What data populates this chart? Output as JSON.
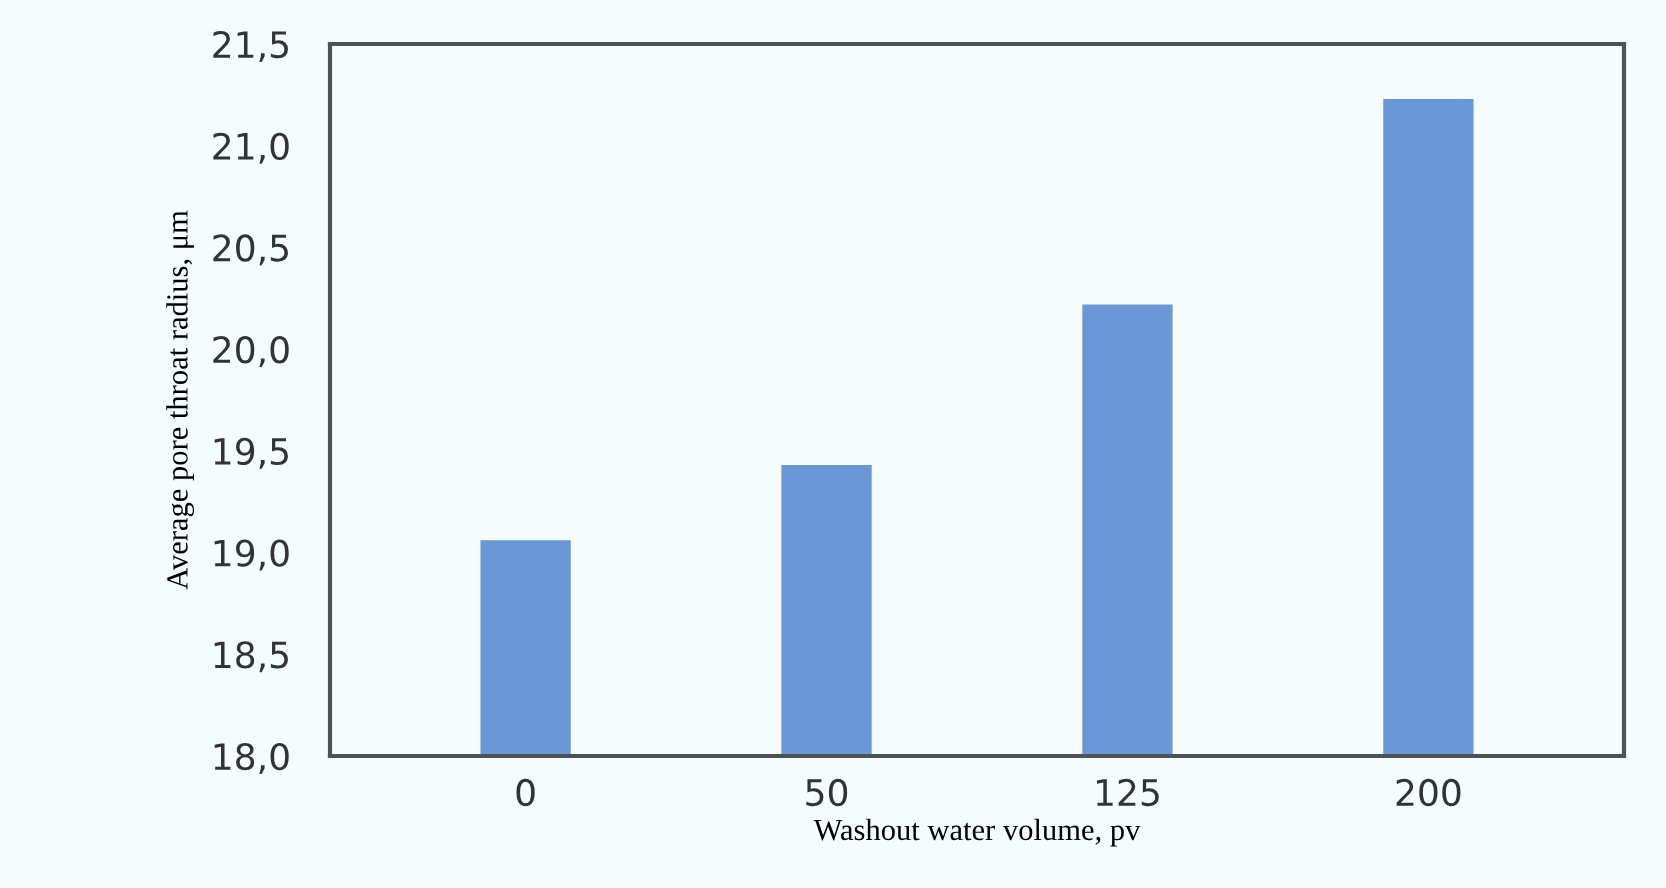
{
  "chart_data": {
    "type": "bar",
    "xlabel": "Washout water volume, pv",
    "ylabel": "Average pore throat radius, μm",
    "categories": [
      "0",
      "50",
      "125",
      "200"
    ],
    "values": [
      19.06,
      19.43,
      20.22,
      21.23
    ],
    "color": "#6a97d6",
    "ylim": [
      18.0,
      21.5
    ],
    "yticks": [
      {
        "value": 18.0,
        "label": "18,0"
      },
      {
        "value": 18.5,
        "label": "18,5"
      },
      {
        "value": 19.0,
        "label": "19,0"
      },
      {
        "value": 19.5,
        "label": "19,5"
      },
      {
        "value": 20.0,
        "label": "20,0"
      },
      {
        "value": 20.5,
        "label": "20,5"
      },
      {
        "value": 21.0,
        "label": "21,0"
      },
      {
        "value": 21.5,
        "label": "21,5"
      }
    ],
    "grid": false
  }
}
